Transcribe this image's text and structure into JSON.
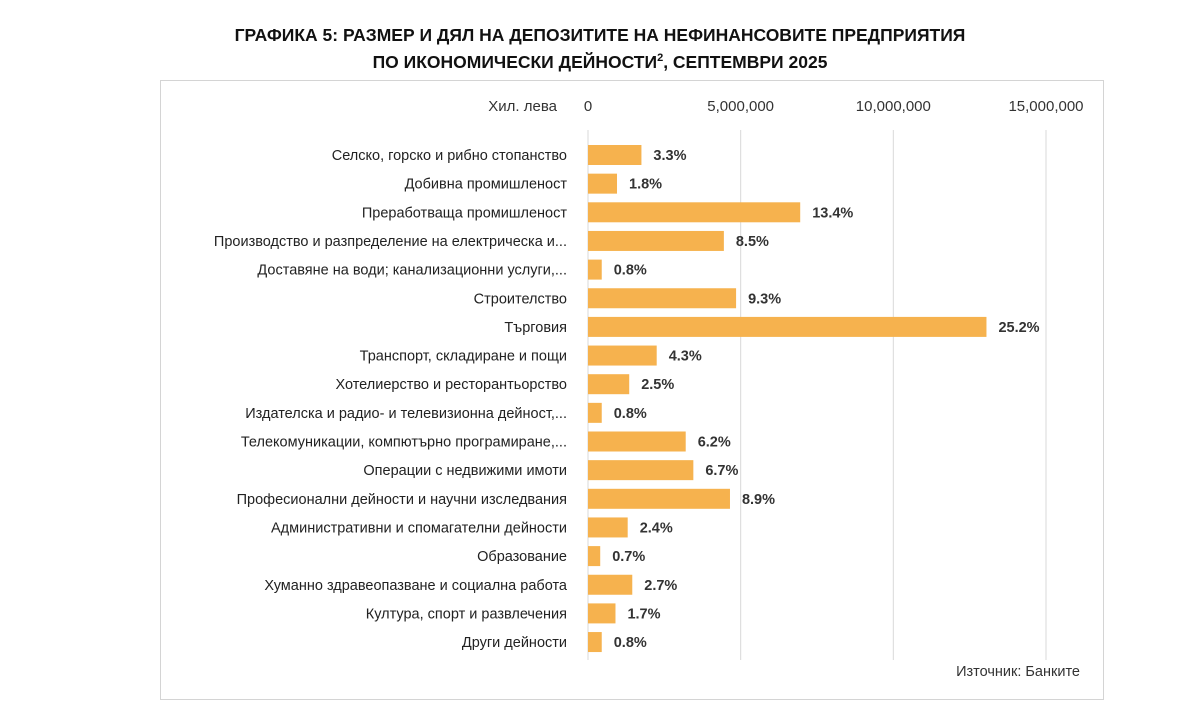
{
  "chart_data": {
    "type": "bar",
    "orientation": "horizontal",
    "title_line1": "ГРАФИКА 5: РАЗМЕР И ДЯЛ НА ДЕПОЗИТИТЕ НА НЕФИНАНСОВИТЕ ПРЕДПРИЯТИЯ",
    "title_line2": "ПО ИКОНОМИЧЕСКИ ДЕЙНОСТИ",
    "title_sup": "2",
    "title_suffix": ", СЕПТЕМВРИ 2025",
    "unit_label": "Хил. лева",
    "xlim": [
      0,
      15000000
    ],
    "ticks": [
      {
        "value": 0,
        "label": "0"
      },
      {
        "value": 5000000,
        "label": "5,000,000"
      },
      {
        "value": 10000000,
        "label": "10,000,000"
      },
      {
        "value": 15000000,
        "label": "15,000,000"
      }
    ],
    "bar_color": "#f6b24e",
    "categories": [
      "Селско, горско и рибно стопанство",
      "Добивна промишленост",
      "Преработваща промишленост",
      "Производство и разпределение на електрическа и...",
      "Доставяне на води; канализационни услуги,...",
      "Строителство",
      "Търговия",
      "Транспорт, складиране и пощи",
      "Хотелиерство и ресторантьорство",
      "Издателска и радио- и телевизионна дейност,...",
      "Телекомуникации, компютърно програмиране,...",
      "Операции с недвижими имоти",
      "Професионални дейности и научни изследвания",
      "Административни и спомагателни дейности",
      "Образование",
      "Хуманно здравеопазване и социална работа",
      "Култура, спорт и развлечения",
      "Други дейности"
    ],
    "values": [
      1750000,
      950000,
      6950000,
      4450000,
      450000,
      4850000,
      13050000,
      2250000,
      1350000,
      450000,
      3200000,
      3450000,
      4650000,
      1300000,
      400000,
      1450000,
      900000,
      450000
    ],
    "labels": [
      "3.3%",
      "1.8%",
      "13.4%",
      "8.5%",
      "0.8%",
      "9.3%",
      "25.2%",
      "4.3%",
      "2.5%",
      "0.8%",
      "6.2%",
      "6.7%",
      "8.9%",
      "2.4%",
      "0.7%",
      "2.7%",
      "1.7%",
      "0.8%"
    ]
  },
  "source": "Източник: Банките"
}
